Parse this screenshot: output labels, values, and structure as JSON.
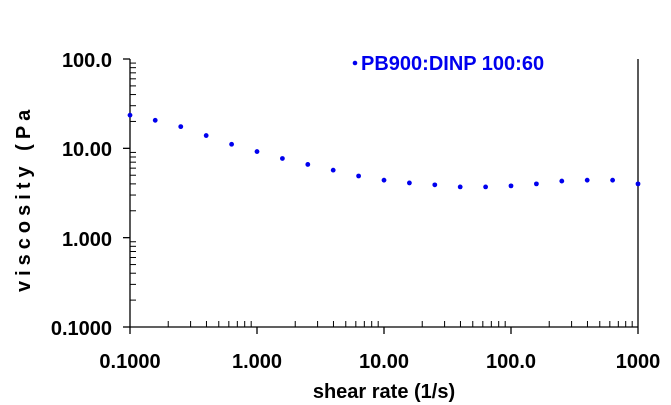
{
  "chart_data": {
    "type": "scatter",
    "xlabel": "shear rate (1/s)",
    "ylabel": "viscosity (Pa",
    "xscale": "log",
    "yscale": "log",
    "xlim": [
      0.1,
      1000
    ],
    "ylim": [
      0.1,
      100
    ],
    "x_tick_labels": [
      "0.1000",
      "1.000",
      "10.00",
      "100.0",
      "1000"
    ],
    "y_tick_labels": [
      "0.1000",
      "1.000",
      "10.00",
      "100.0"
    ],
    "grid": false,
    "legend_position": "top-right",
    "series": [
      {
        "name": "PB900:DINP 100:60",
        "color": "#0000ee",
        "x": [
          0.1,
          0.158,
          0.251,
          0.398,
          0.631,
          1.0,
          1.585,
          2.512,
          3.981,
          6.31,
          10.0,
          15.85,
          25.12,
          39.81,
          63.1,
          100.0,
          158.5,
          251.2,
          398.1,
          631.0,
          1000.0
        ],
        "y": [
          23.5,
          20.6,
          17.5,
          13.9,
          11.1,
          9.2,
          7.7,
          6.6,
          5.7,
          4.9,
          4.4,
          4.1,
          3.9,
          3.7,
          3.7,
          3.8,
          4.0,
          4.3,
          4.4,
          4.4,
          4.0
        ]
      }
    ]
  }
}
